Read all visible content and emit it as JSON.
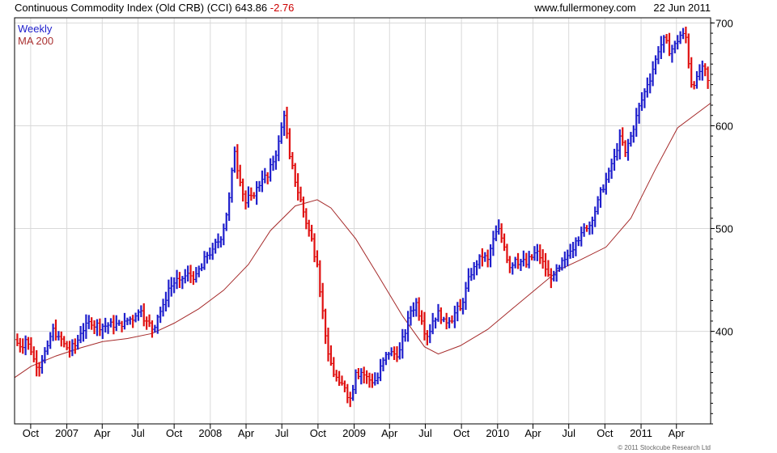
{
  "header": {
    "title": "Continuous Commodity Index (Old CRB) (CCI)",
    "last": "643.86",
    "change": "-2.76",
    "site": "www.fullermoney.com",
    "date": "22 Jun 2011"
  },
  "copyright": "© 2011 Stockcube Research Ltd",
  "colors": {
    "up": "#1f1fcc",
    "down": "#e01010",
    "ma": "#a52a2a",
    "grid": "#d9d9d9",
    "frame": "#000000"
  },
  "chart_data": {
    "type": "line",
    "title": "Continuous Commodity Index (Old CRB) (CCI)",
    "frequency": "Weekly",
    "ylim": [
      310,
      705
    ],
    "yticks": [
      400,
      500,
      600,
      700
    ],
    "xlim": [
      "2006-08-21",
      "2011-06-27"
    ],
    "xticks": [
      {
        "label": "Oct",
        "date": "2006-10-01"
      },
      {
        "label": "2007",
        "date": "2007-01-01"
      },
      {
        "label": "Apr",
        "date": "2007-04-01"
      },
      {
        "label": "Jul",
        "date": "2007-07-01"
      },
      {
        "label": "Oct",
        "date": "2007-10-01"
      },
      {
        "label": "2008",
        "date": "2008-01-01"
      },
      {
        "label": "Apr",
        "date": "2008-04-01"
      },
      {
        "label": "Jul",
        "date": "2008-07-01"
      },
      {
        "label": "Oct",
        "date": "2008-10-01"
      },
      {
        "label": "2009",
        "date": "2009-01-01"
      },
      {
        "label": "Apr",
        "date": "2009-04-01"
      },
      {
        "label": "Jul",
        "date": "2009-07-01"
      },
      {
        "label": "Oct",
        "date": "2009-10-01"
      },
      {
        "label": "2010",
        "date": "2010-01-01"
      },
      {
        "label": "Apr",
        "date": "2010-04-01"
      },
      {
        "label": "Jul",
        "date": "2010-07-01"
      },
      {
        "label": "Oct",
        "date": "2010-10-01"
      },
      {
        "label": "2011",
        "date": "2011-01-01"
      },
      {
        "label": "Apr",
        "date": "2011-04-01"
      }
    ],
    "grid": true,
    "legend": "top-left",
    "series": [
      {
        "name": "Weekly",
        "kind": "bars",
        "points": [
          [
            "2006-08-21",
            392
          ],
          [
            "2006-09-04",
            385
          ],
          [
            "2006-09-18",
            392
          ],
          [
            "2006-10-02",
            380
          ],
          [
            "2006-10-16",
            365
          ],
          [
            "2006-10-30",
            372
          ],
          [
            "2006-11-13",
            386
          ],
          [
            "2006-11-27",
            403
          ],
          [
            "2006-12-11",
            395
          ],
          [
            "2006-12-25",
            388
          ],
          [
            "2007-01-08",
            381
          ],
          [
            "2007-01-22",
            386
          ],
          [
            "2007-02-05",
            398
          ],
          [
            "2007-02-19",
            408
          ],
          [
            "2007-03-05",
            406
          ],
          [
            "2007-03-19",
            408
          ],
          [
            "2007-04-02",
            405
          ],
          [
            "2007-04-16",
            406
          ],
          [
            "2007-04-30",
            404
          ],
          [
            "2007-05-14",
            408
          ],
          [
            "2007-05-28",
            410
          ],
          [
            "2007-06-11",
            412
          ],
          [
            "2007-06-25",
            415
          ],
          [
            "2007-07-09",
            420
          ],
          [
            "2007-07-23",
            410
          ],
          [
            "2007-08-06",
            402
          ],
          [
            "2007-08-20",
            414
          ],
          [
            "2007-09-03",
            426
          ],
          [
            "2007-09-17",
            442
          ],
          [
            "2007-10-01",
            447
          ],
          [
            "2007-10-15",
            450
          ],
          [
            "2007-10-29",
            454
          ],
          [
            "2007-11-12",
            454
          ],
          [
            "2007-11-26",
            456
          ],
          [
            "2007-12-10",
            462
          ],
          [
            "2007-12-24",
            474
          ],
          [
            "2008-01-07",
            480
          ],
          [
            "2008-01-21",
            487
          ],
          [
            "2008-02-04",
            500
          ],
          [
            "2008-02-18",
            530
          ],
          [
            "2008-03-03",
            575
          ],
          [
            "2008-03-17",
            545
          ],
          [
            "2008-03-31",
            525
          ],
          [
            "2008-04-14",
            532
          ],
          [
            "2008-04-28",
            540
          ],
          [
            "2008-05-12",
            548
          ],
          [
            "2008-05-26",
            550
          ],
          [
            "2008-06-09",
            565
          ],
          [
            "2008-06-23",
            585
          ],
          [
            "2008-07-07",
            610
          ],
          [
            "2008-07-21",
            570
          ],
          [
            "2008-08-04",
            545
          ],
          [
            "2008-08-18",
            528
          ],
          [
            "2008-09-01",
            505
          ],
          [
            "2008-09-15",
            490
          ],
          [
            "2008-09-29",
            465
          ],
          [
            "2008-10-13",
            420
          ],
          [
            "2008-10-27",
            378
          ],
          [
            "2008-11-10",
            358
          ],
          [
            "2008-11-24",
            350
          ],
          [
            "2008-12-08",
            345
          ],
          [
            "2008-12-22",
            335
          ],
          [
            "2009-01-05",
            360
          ],
          [
            "2009-01-19",
            360
          ],
          [
            "2009-02-02",
            356
          ],
          [
            "2009-02-16",
            350
          ],
          [
            "2009-03-02",
            355
          ],
          [
            "2009-03-16",
            372
          ],
          [
            "2009-03-30",
            378
          ],
          [
            "2009-04-13",
            378
          ],
          [
            "2009-04-27",
            382
          ],
          [
            "2009-05-11",
            398
          ],
          [
            "2009-05-25",
            420
          ],
          [
            "2009-06-08",
            428
          ],
          [
            "2009-06-22",
            410
          ],
          [
            "2009-07-06",
            395
          ],
          [
            "2009-07-20",
            410
          ],
          [
            "2009-08-03",
            420
          ],
          [
            "2009-08-17",
            412
          ],
          [
            "2009-08-31",
            410
          ],
          [
            "2009-09-14",
            418
          ],
          [
            "2009-09-28",
            422
          ],
          [
            "2009-10-12",
            442
          ],
          [
            "2009-10-26",
            455
          ],
          [
            "2009-11-09",
            465
          ],
          [
            "2009-11-23",
            472
          ],
          [
            "2009-12-07",
            470
          ],
          [
            "2009-12-21",
            490
          ],
          [
            "2010-01-04",
            500
          ],
          [
            "2010-01-18",
            482
          ],
          [
            "2010-02-01",
            462
          ],
          [
            "2010-02-15",
            470
          ],
          [
            "2010-03-01",
            468
          ],
          [
            "2010-03-15",
            465
          ],
          [
            "2010-03-29",
            472
          ],
          [
            "2010-04-12",
            478
          ],
          [
            "2010-04-26",
            468
          ],
          [
            "2010-05-10",
            455
          ],
          [
            "2010-05-24",
            455
          ],
          [
            "2010-06-07",
            462
          ],
          [
            "2010-06-21",
            470
          ],
          [
            "2010-07-05",
            478
          ],
          [
            "2010-07-19",
            488
          ],
          [
            "2010-08-02",
            496
          ],
          [
            "2010-08-16",
            500
          ],
          [
            "2010-08-30",
            508
          ],
          [
            "2010-09-13",
            528
          ],
          [
            "2010-09-27",
            538
          ],
          [
            "2010-10-11",
            556
          ],
          [
            "2010-10-25",
            570
          ],
          [
            "2010-11-08",
            590
          ],
          [
            "2010-11-22",
            574
          ],
          [
            "2010-12-06",
            590
          ],
          [
            "2010-12-20",
            610
          ],
          [
            "2011-01-03",
            625
          ],
          [
            "2011-01-17",
            640
          ],
          [
            "2011-01-31",
            655
          ],
          [
            "2011-02-14",
            672
          ],
          [
            "2011-02-28",
            686
          ],
          [
            "2011-03-14",
            670
          ],
          [
            "2011-03-28",
            680
          ],
          [
            "2011-04-11",
            688
          ],
          [
            "2011-04-25",
            686
          ],
          [
            "2011-05-09",
            640
          ],
          [
            "2011-05-23",
            648
          ],
          [
            "2011-06-06",
            658
          ],
          [
            "2011-06-20",
            644
          ]
        ]
      },
      {
        "name": "MA 200",
        "kind": "line",
        "points": [
          [
            "2006-08-21",
            355
          ],
          [
            "2006-10-02",
            366
          ],
          [
            "2006-12-04",
            376
          ],
          [
            "2007-02-05",
            384
          ],
          [
            "2007-04-02",
            390
          ],
          [
            "2007-06-04",
            393
          ],
          [
            "2007-08-06",
            398
          ],
          [
            "2007-10-01",
            408
          ],
          [
            "2007-12-03",
            422
          ],
          [
            "2008-02-04",
            440
          ],
          [
            "2008-04-07",
            465
          ],
          [
            "2008-06-02",
            498
          ],
          [
            "2008-08-04",
            522
          ],
          [
            "2008-09-29",
            528
          ],
          [
            "2008-11-03",
            520
          ],
          [
            "2009-01-05",
            490
          ],
          [
            "2009-03-02",
            455
          ],
          [
            "2009-05-04",
            415
          ],
          [
            "2009-06-29",
            385
          ],
          [
            "2009-08-03",
            378
          ],
          [
            "2009-09-28",
            386
          ],
          [
            "2009-12-07",
            402
          ],
          [
            "2010-02-01",
            420
          ],
          [
            "2010-04-05",
            440
          ],
          [
            "2010-06-07",
            460
          ],
          [
            "2010-08-02",
            470
          ],
          [
            "2010-10-04",
            482
          ],
          [
            "2010-12-06",
            510
          ],
          [
            "2011-02-07",
            558
          ],
          [
            "2011-04-04",
            598
          ],
          [
            "2011-06-27",
            622
          ]
        ]
      }
    ]
  }
}
